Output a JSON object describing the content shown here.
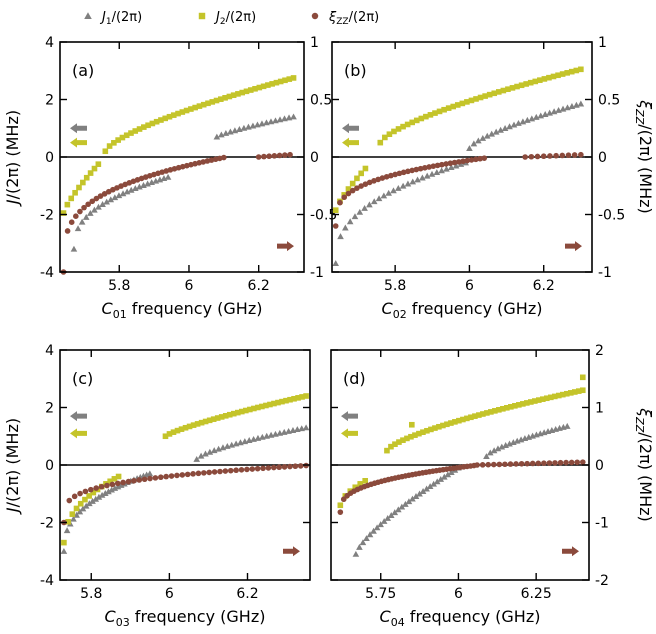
{
  "legend": [
    {
      "symbol": "triangle",
      "color": "#808080",
      "label_main": "J",
      "label_sub": "1",
      "label_rest": "/(2π)"
    },
    {
      "symbol": "square",
      "color": "#c4c42a",
      "label_main": "J",
      "label_sub": "2",
      "label_rest": "/(2π)"
    },
    {
      "symbol": "circle",
      "color": "#8b4a3c",
      "label_main": "ξ",
      "label_sub": "ZZ",
      "label_rest": "/(2π)"
    }
  ],
  "colors": {
    "j1": "#808080",
    "j2": "#c4c42a",
    "xi": "#8b4a3c"
  },
  "chart_data": [
    {
      "type": "scatter",
      "panel_label": "(a)",
      "xlabel_main": "C",
      "xlabel_sub": "01",
      "xlabel_rest": " frequency (GHz)",
      "xlim": [
        5.63,
        6.33
      ],
      "xticks": [
        5.8,
        6.0,
        6.2
      ],
      "xtick_labels": [
        "5.8",
        "6",
        "6.2"
      ],
      "ylim_left": [
        -4,
        4
      ],
      "yticks_left": [
        -4,
        -2,
        0,
        2,
        4
      ],
      "ytick_labels_left": [
        "-4",
        "-2",
        "0",
        "2",
        "4"
      ],
      "ylim_right": [
        -1,
        1
      ],
      "yticks_right": [
        -1,
        -0.5,
        0,
        0.5,
        1
      ],
      "ytick_labels_right": [
        "-1",
        "-0.5",
        "0",
        "0.5",
        "1"
      ],
      "show_left_labels": true,
      "show_right_labels": true,
      "series": [
        {
          "key": "j1",
          "axis": "left",
          "symbol": "triangle",
          "segments": [
            [
              5.67,
              5.94,
              -3.2,
              -0.7,
              0.4,
              24
            ],
            [
              6.08,
              6.3,
              0.7,
              1.4,
              0.8,
              18
            ]
          ]
        },
        {
          "key": "j2",
          "axis": "left",
          "symbol": "square",
          "segments": [
            [
              5.64,
              5.74,
              -1.95,
              -0.25,
              0.8,
              10
            ],
            [
              5.76,
              6.3,
              0.2,
              2.75,
              0.7,
              45
            ]
          ]
        },
        {
          "key": "xi",
          "axis": "right",
          "symbol": "circle",
          "segments": [
            [
              5.64,
              6.1,
              -1.0,
              -0.005,
              0.28,
              40
            ],
            [
              6.2,
              6.29,
              0.0,
              0.02,
              1,
              7
            ]
          ]
        }
      ],
      "arrows": [
        {
          "dir": "left",
          "key": "j1",
          "y": 1.0
        },
        {
          "dir": "left",
          "key": "j2",
          "y": 0.5
        },
        {
          "dir": "right",
          "key": "xi",
          "y": -3.1
        }
      ]
    },
    {
      "type": "scatter",
      "panel_label": "(b)",
      "xlabel_main": "C",
      "xlabel_sub": "02",
      "xlabel_rest": " frequency (GHz)",
      "xlim": [
        5.63,
        6.33
      ],
      "xticks": [
        5.8,
        6.0,
        6.2
      ],
      "xtick_labels": [
        "5.8",
        "6",
        "6.2"
      ],
      "ylim_left": [
        -4,
        4
      ],
      "yticks_left": [
        -4,
        -2,
        0,
        2,
        4
      ],
      "ytick_labels_left": [
        "-4",
        "-2",
        "0",
        "2",
        "4"
      ],
      "ylim_right": [
        -1,
        1
      ],
      "yticks_right": [
        -1,
        -0.5,
        0,
        0.5,
        1
      ],
      "ytick_labels_right": [
        "-1",
        "-0.5",
        "0",
        "0.5",
        "1"
      ],
      "show_left_labels": false,
      "show_right_labels": true,
      "series": [
        {
          "key": "j1",
          "axis": "left",
          "symbol": "triangle",
          "segments": [
            [
              5.64,
              5.99,
              -3.7,
              -0.2,
              0.4,
              28
            ],
            [
              6.0,
              6.3,
              0.3,
              1.85,
              0.7,
              26
            ]
          ]
        },
        {
          "key": "j2",
          "axis": "left",
          "symbol": "square",
          "segments": [
            [
              5.64,
              5.72,
              -1.85,
              -0.4,
              0.8,
              8
            ],
            [
              5.76,
              6.3,
              0.5,
              3.05,
              0.7,
              45
            ]
          ]
        },
        {
          "key": "xi",
          "axis": "right",
          "symbol": "circle",
          "segments": [
            [
              5.64,
              6.04,
              -0.6,
              -0.01,
              0.3,
              36
            ],
            [
              6.15,
              6.3,
              0.0,
              0.02,
              1,
              10
            ]
          ]
        }
      ],
      "arrows": [
        {
          "dir": "left",
          "key": "j1",
          "y": 1.0
        },
        {
          "dir": "left",
          "key": "j2",
          "y": 0.5
        },
        {
          "dir": "right",
          "key": "xi",
          "y": -3.1
        }
      ]
    },
    {
      "type": "scatter",
      "panel_label": "(c)",
      "xlabel_main": "C",
      "xlabel_sub": "03",
      "xlabel_rest": " frequency (GHz)",
      "xlim": [
        5.72,
        6.36
      ],
      "xticks": [
        5.8,
        6.0,
        6.2
      ],
      "xtick_labels": [
        "5.8",
        "6",
        "6.2"
      ],
      "ylim_left": [
        -4,
        4
      ],
      "yticks_left": [
        -4,
        -2,
        0,
        2,
        4
      ],
      "ytick_labels_left": [
        "-4",
        "-2",
        "0",
        "2",
        "4"
      ],
      "ylim_right": [
        -1,
        1
      ],
      "yticks_right": [
        -1,
        -0.5,
        0,
        0.5,
        1
      ],
      "ytick_labels_right": [
        "",
        "",
        "",
        "",
        ""
      ],
      "show_left_labels": true,
      "show_right_labels": false,
      "series": [
        {
          "key": "j1",
          "axis": "left",
          "symbol": "triangle",
          "segments": [
            [
              5.73,
              5.95,
              -3.0,
              -0.3,
              0.4,
              28
            ],
            [
              6.07,
              6.35,
              0.2,
              1.3,
              0.7,
              26
            ]
          ]
        },
        {
          "key": "j2",
          "axis": "left",
          "symbol": "square",
          "segments": [
            [
              5.73,
              5.87,
              -2.7,
              -0.4,
              0.45,
              14
            ],
            [
              5.99,
              6.35,
              1.0,
              2.4,
              0.8,
              36
            ]
          ]
        },
        {
          "key": "xi",
          "axis": "right",
          "symbol": "circle",
          "segments": [
            [
              5.73,
              6.35,
              -0.5,
              -0.005,
              0.25,
              46
            ]
          ]
        }
      ],
      "arrows": [
        {
          "dir": "left",
          "key": "j1",
          "y": 1.7
        },
        {
          "dir": "left",
          "key": "j2",
          "y": 1.1
        },
        {
          "dir": "right",
          "key": "xi",
          "y": -3.0
        }
      ]
    },
    {
      "type": "scatter",
      "panel_label": "(d)",
      "xlabel_main": "C",
      "xlabel_sub": "04",
      "xlabel_rest": " frequency (GHz)",
      "xlim": [
        5.59,
        6.42
      ],
      "xticks": [
        5.75,
        6.0,
        6.25
      ],
      "xtick_labels": [
        "5.75",
        "6",
        "6.25"
      ],
      "ylim_left": [
        -4,
        4
      ],
      "yticks_left": [
        -4,
        -2,
        0,
        2,
        4
      ],
      "ytick_labels_left": [
        "",
        "",
        "",
        "",
        ""
      ],
      "ylim_right": [
        -2,
        2
      ],
      "yticks_right": [
        -2,
        -1,
        0,
        1,
        2
      ],
      "ytick_labels_right": [
        "-2",
        "-1",
        "0",
        "1",
        "2"
      ],
      "show_left_labels": false,
      "show_right_labels": true,
      "series": [
        {
          "key": "j1",
          "axis": "left",
          "symbol": "triangle",
          "segments": [
            [
              5.67,
              6.0,
              -3.1,
              -0.1,
              0.75,
              30
            ],
            [
              6.09,
              6.35,
              0.3,
              1.35,
              0.7,
              22
            ]
          ]
        },
        {
          "key": "j2",
          "axis": "left",
          "symbol": "square",
          "segments": [
            [
              5.62,
              5.7,
              -1.4,
              -0.55,
              0.6,
              6
            ],
            [
              5.77,
              6.4,
              0.5,
              2.6,
              0.7,
              50
            ]
          ]
        },
        {
          "key": "xi",
          "axis": "right",
          "symbol": "circle",
          "segments": [
            [
              5.62,
              6.05,
              -0.82,
              -0.01,
              0.35,
              40
            ],
            [
              6.06,
              6.4,
              0.0,
              0.05,
              1,
              20
            ]
          ]
        }
      ],
      "extra_points": [
        {
          "key": "j2",
          "axis": "left",
          "symbol": "square",
          "x": 5.85,
          "y": 1.4
        },
        {
          "key": "j2",
          "axis": "left",
          "symbol": "square",
          "x": 6.4,
          "y": 3.05
        }
      ],
      "arrows": [
        {
          "dir": "left",
          "key": "j1",
          "y": 1.7
        },
        {
          "dir": "left",
          "key": "j2",
          "y": 1.1
        },
        {
          "dir": "right",
          "key": "xi",
          "y": -3.0
        }
      ]
    }
  ],
  "ylabel_left": {
    "main": "J",
    "rest": "/(2π) (MHz)"
  },
  "ylabel_right": {
    "main": "ξ",
    "sub": "ZZ",
    "rest": "/(2π) (MHz)"
  }
}
